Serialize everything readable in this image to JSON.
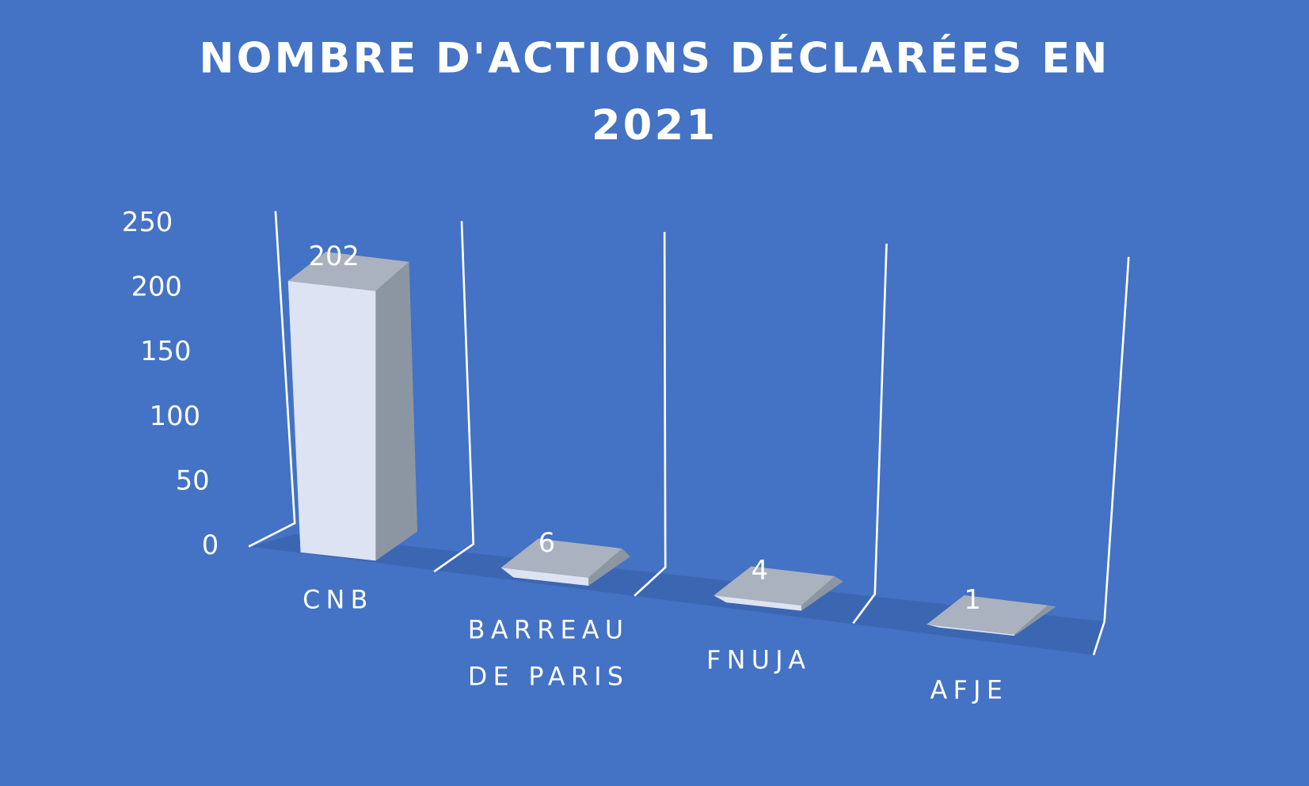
{
  "chart_data": {
    "type": "bar3d",
    "title": "NOMBRE D'ACTIONS DÉCLARÉES EN 2021",
    "categories": [
      "CNB",
      "BARREAU DE PARIS",
      "FNUJA",
      "AFJE"
    ],
    "values": [
      202,
      6,
      4,
      1
    ],
    "ylim": [
      0,
      250
    ],
    "yticks": [
      0,
      50,
      100,
      150,
      200,
      250
    ],
    "color": "#dde3f2",
    "grid": false
  }
}
